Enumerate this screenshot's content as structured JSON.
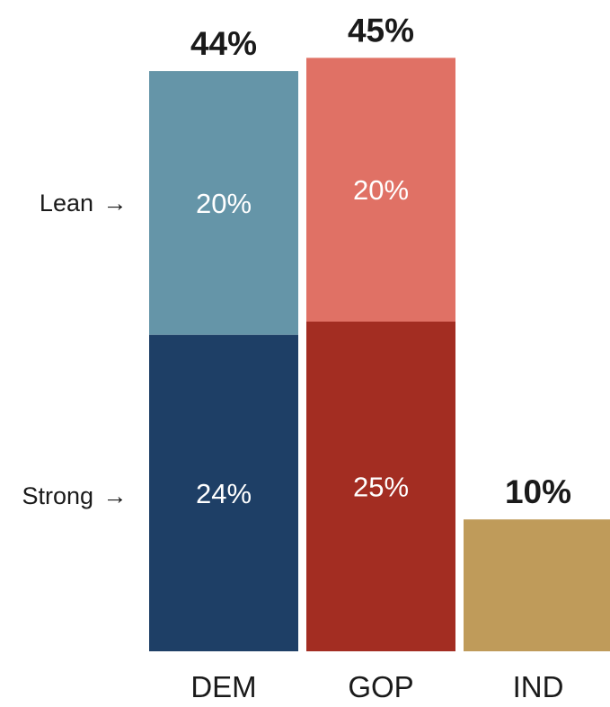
{
  "chart_data": {
    "type": "bar",
    "stacked": true,
    "categories": [
      "DEM",
      "GOP",
      "IND"
    ],
    "totals": [
      "44%",
      "45%",
      "10%"
    ],
    "total_values": [
      44,
      45,
      10
    ],
    "series": [
      {
        "name": "Strong",
        "values": [
          24,
          25,
          10
        ],
        "labels": [
          "24%",
          "25%",
          ""
        ],
        "colors": [
          "#1e3f66",
          "#a32d22",
          "#bf9b5a"
        ]
      },
      {
        "name": "Lean",
        "values": [
          20,
          20,
          0
        ],
        "labels": [
          "20%",
          "20%",
          ""
        ],
        "colors": [
          "#6595a8",
          "#e07165",
          "#bf9b5a"
        ]
      }
    ],
    "side_labels": [
      "Lean",
      "Strong"
    ],
    "arrow_glyph": "→",
    "ylim": [
      0,
      45
    ],
    "grid": false,
    "legend": "none"
  }
}
